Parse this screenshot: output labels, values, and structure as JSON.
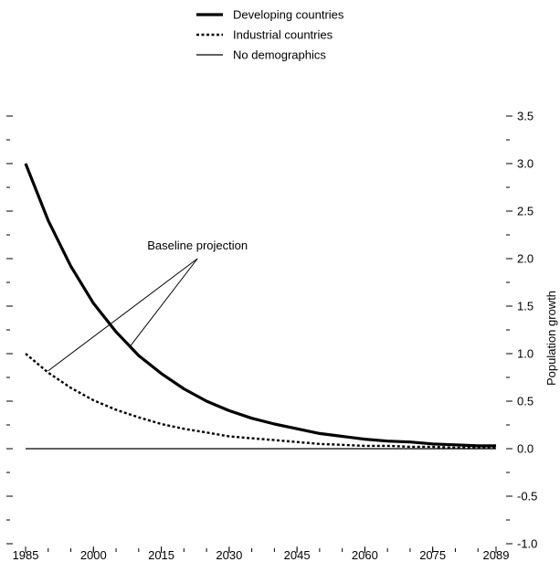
{
  "chart_data": {
    "type": "line",
    "title": "",
    "xlabel": "",
    "ylabel": "Population growth",
    "x_ticks": [
      1985,
      2000,
      2015,
      2030,
      2045,
      2060,
      2075,
      2089
    ],
    "x_range": [
      1985,
      2089
    ],
    "y_ticks": [
      -1.0,
      -0.5,
      0.0,
      0.5,
      1.0,
      1.5,
      2.0,
      2.5,
      3.0,
      3.5
    ],
    "y_tick_labels": [
      "-1.0",
      "-0.5",
      "0.0",
      "0.5",
      "1.0",
      "1.5",
      "2.0",
      "2.5",
      "3.0",
      "3.5"
    ],
    "ylim": [
      -1.0,
      3.5
    ],
    "grid": false,
    "legend_position": "top-center",
    "series": [
      {
        "name": "Developing countries",
        "style": "thick-solid",
        "x": [
          1985,
          1990,
          1995,
          2000,
          2005,
          2010,
          2015,
          2020,
          2025,
          2030,
          2035,
          2040,
          2045,
          2050,
          2055,
          2060,
          2065,
          2070,
          2075,
          2080,
          2085,
          2089
        ],
        "values": [
          3.0,
          2.4,
          1.92,
          1.53,
          1.23,
          0.98,
          0.79,
          0.63,
          0.5,
          0.4,
          0.32,
          0.26,
          0.21,
          0.16,
          0.13,
          0.1,
          0.08,
          0.07,
          0.05,
          0.04,
          0.03,
          0.03
        ]
      },
      {
        "name": "Industrial countries",
        "style": "dotted",
        "x": [
          1985,
          1990,
          1995,
          2000,
          2005,
          2010,
          2015,
          2020,
          2025,
          2030,
          2035,
          2040,
          2045,
          2050,
          2055,
          2060,
          2065,
          2070,
          2075,
          2080,
          2085,
          2089
        ],
        "values": [
          1.0,
          0.8,
          0.64,
          0.51,
          0.41,
          0.33,
          0.26,
          0.21,
          0.17,
          0.13,
          0.11,
          0.09,
          0.07,
          0.05,
          0.04,
          0.03,
          0.03,
          0.02,
          0.02,
          0.01,
          0.01,
          0.01
        ]
      },
      {
        "name": "No demographics",
        "style": "thin-solid",
        "x": [
          1985,
          2089
        ],
        "values": [
          0.0,
          0.0
        ]
      }
    ],
    "annotations": [
      {
        "text": "Baseline projection",
        "label_x": 2023,
        "label_y": 2.0,
        "pointers": [
          {
            "x": 1990,
            "y": 0.82
          },
          {
            "x": 2008,
            "y": 1.07
          }
        ]
      }
    ]
  }
}
